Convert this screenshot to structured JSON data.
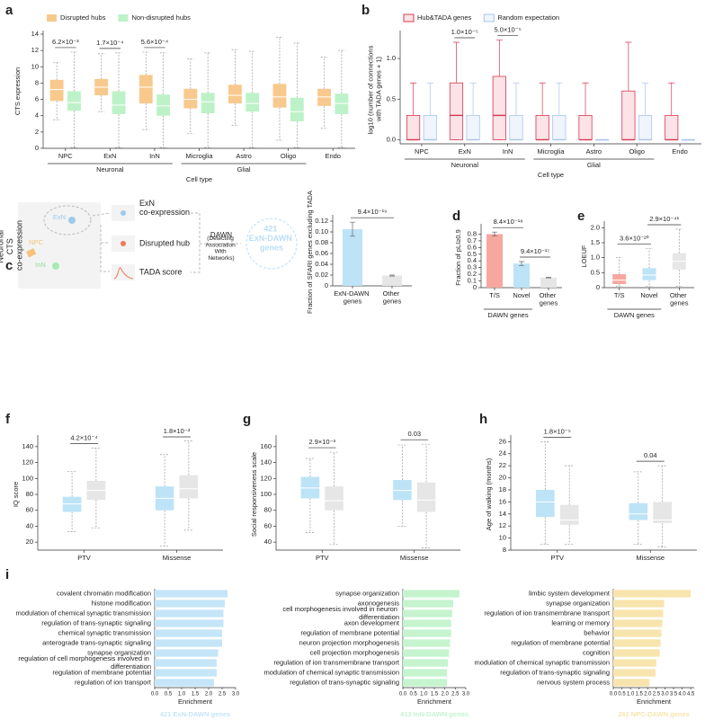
{
  "panels": [
    "a",
    "b",
    "c",
    "d",
    "e",
    "f",
    "g",
    "h",
    "i"
  ],
  "diagram": {
    "title": "Neuronal CTS co-expression",
    "cells": [
      "ExN",
      "InN",
      "NPC"
    ],
    "inputs": [
      "ExN co-expression",
      "Disrupted hub",
      "TADA score"
    ],
    "method": "DAWN",
    "method_note": "(Detecting Association With Networks)",
    "output": "421 ExN-DAWN genes"
  },
  "chart_data": [
    {
      "type": "box",
      "ylabel": "CTS expression",
      "xlabel": "Cell type",
      "categories": [
        "NPC",
        "ExN",
        "InN",
        "Microglia",
        "Astro",
        "Oligo",
        "Endo"
      ],
      "groups": [
        "Neuronal",
        "Neuronal",
        "Neuronal",
        "Glial",
        "Glial",
        "Glial",
        null
      ],
      "ylim": [
        0,
        14
      ],
      "yticks": [
        0,
        2,
        4,
        6,
        8,
        10,
        12,
        14
      ],
      "legend": "top-left",
      "annotations": [
        "6.2×10⁻³",
        "1.7×10⁻⁴",
        "5.6×10⁻⁴",
        null,
        null,
        null,
        null
      ],
      "series": [
        {
          "name": "Disrupted hubs",
          "color": "#f8c98d",
          "values": [
            [
              3.5,
              5.8,
              7.2,
              8.4,
              10.5
            ],
            [
              4.5,
              6.5,
              7.5,
              8.5,
              11.6
            ],
            [
              2.3,
              5.5,
              7.5,
              9.0,
              11.8
            ],
            [
              1.8,
              4.9,
              6.0,
              7.3,
              11.0
            ],
            [
              2.8,
              5.5,
              6.5,
              7.8,
              12.1
            ],
            [
              1.0,
              5.0,
              6.3,
              7.9,
              13.6
            ],
            [
              2.5,
              5.2,
              6.3,
              7.3,
              11.2
            ]
          ]
        },
        {
          "name": "Non-disrupted hubs",
          "color": "#bdf2c8",
          "values": [
            [
              0.1,
              4.6,
              5.6,
              7.0,
              11.8
            ],
            [
              0.1,
              4.2,
              5.3,
              7.0,
              11.7
            ],
            [
              0.1,
              4.0,
              5.2,
              6.6,
              11.7
            ],
            [
              0.1,
              4.3,
              5.7,
              6.8,
              11.7
            ],
            [
              0.1,
              4.5,
              5.5,
              6.8,
              11.9
            ],
            [
              0.1,
              3.3,
              4.5,
              6.2,
              12.9
            ],
            [
              0.1,
              4.2,
              5.5,
              6.7,
              12.0
            ]
          ]
        }
      ]
    },
    {
      "type": "box",
      "ylabel": "log10 (number of connections with TADA genes + 1)",
      "xlabel": "Cell type",
      "categories": [
        "NPC",
        "ExN",
        "InN",
        "Microglia",
        "Astro",
        "Oligo",
        "Endo"
      ],
      "groups": [
        "Neuronal",
        "Neuronal",
        "Neuronal",
        "Glial",
        "Glial",
        "Glial",
        null
      ],
      "ylim": [
        -0.05,
        1.3
      ],
      "yticks": [
        {
          "value": 0,
          "label": "0.0"
        },
        0.5,
        {
          "value": 1,
          "label": "1.0"
        }
      ],
      "legend": "top-left",
      "annotations": [
        null,
        "1.0×10⁻⁵",
        "5.0×10⁻⁵",
        null,
        null,
        null,
        null
      ],
      "series": [
        {
          "name": "Hub&TADA genes",
          "color": "#d9384f",
          "fill": "#fbe3e7",
          "values": [
            [
              0,
              0,
              0,
              0.3,
              0.7
            ],
            [
              0,
              0,
              0.3,
              0.7,
              1.2
            ],
            [
              0,
              0,
              0.3,
              0.78,
              1.23
            ],
            [
              0,
              0,
              0,
              0.3,
              0.7
            ],
            [
              0,
              0,
              0,
              0.3,
              0.7
            ],
            [
              0,
              0,
              0,
              0.6,
              1.2
            ],
            [
              0,
              0,
              0,
              0.3,
              0.7
            ]
          ]
        },
        {
          "name": "Random expectation",
          "color": "#a9c4ec",
          "fill": "#f0f4fc",
          "values": [
            [
              0,
              0,
              0,
              0.3,
              0.7
            ],
            [
              0,
              0,
              0,
              0.3,
              0.7
            ],
            [
              0,
              0,
              0,
              0.3,
              0.7
            ],
            [
              0,
              0,
              0,
              0.3,
              0.7
            ],
            [
              0,
              0,
              0,
              0,
              0
            ],
            [
              0,
              0,
              0,
              0.3,
              0.7
            ],
            [
              0,
              0,
              0,
              0,
              0
            ]
          ]
        }
      ]
    },
    {
      "type": "bar",
      "ylabel": "Fraction of SFARI genes excluding TADA",
      "categories": [
        "ExN-DAWN genes",
        "Other genes"
      ],
      "values": [
        0.105,
        0.019
      ],
      "errors": [
        0.013,
        0.001
      ],
      "colors": [
        "#bde3f6",
        "#e6e6e6"
      ],
      "ylim": [
        0,
        0.125
      ],
      "yticks": [
        0,
        0.02,
        0.04,
        0.06,
        0.08,
        {
          "value": 0.1,
          "label": "0.10"
        },
        0.12
      ],
      "annotations": [
        "9.4×10⁻¹⁹"
      ]
    },
    {
      "type": "bar",
      "ylabel": "Fraction of pLI≥0.9",
      "categories": [
        "T/S",
        "Novel",
        "Other genes"
      ],
      "groups": [
        "DAWN genes",
        "DAWN genes",
        null
      ],
      "values": [
        0.8,
        0.36,
        0.15
      ],
      "errors": [
        0.03,
        0.03,
        0.005
      ],
      "colors": [
        "#f6a8a0",
        "#bde3f6",
        "#e6e6e6"
      ],
      "ylim": [
        0,
        0.9
      ],
      "yticks": [
        0,
        0.1,
        0.2,
        0.3,
        0.4,
        0.5,
        0.6,
        0.7,
        0.8
      ],
      "annotations": [
        "8.4×10⁻¹⁸",
        "9.4×10⁻¹⁷"
      ]
    },
    {
      "type": "box",
      "ylabel": "LOEUF",
      "categories": [
        "T/S",
        "Novel",
        "Other genes"
      ],
      "groups": [
        "DAWN genes",
        "DAWN genes",
        null
      ],
      "values": [
        [
          0.05,
          0.12,
          0.25,
          0.45,
          1.0
        ],
        [
          0.05,
          0.25,
          0.42,
          0.65,
          1.3
        ],
        [
          0.05,
          0.6,
          0.88,
          1.15,
          1.95
        ]
      ],
      "colors": [
        "#f6a8a0",
        "#bde3f6",
        "#e6e6e6"
      ],
      "ylim": [
        0,
        2.1
      ],
      "yticks": [
        0,
        0.5,
        {
          "value": 1,
          "label": "1.0"
        },
        1.5,
        {
          "value": 2,
          "label": "2.0"
        }
      ],
      "annotations": [
        "3.6×10⁻²⁰",
        "2.9×10⁻⁴¹"
      ]
    },
    {
      "type": "box",
      "ylabel": "IQ score",
      "categories": [
        "PTV",
        "Missense"
      ],
      "ylim": [
        10,
        150
      ],
      "yticks": [
        20,
        40,
        60,
        80,
        100,
        120,
        140
      ],
      "annotations": [
        "4.2×10⁻⁴",
        "1.8×10⁻³"
      ],
      "series": [
        {
          "color": "#bde3f6",
          "values": [
            [
              33,
              58,
              68,
              77,
              109
            ],
            [
              15,
              60,
              75,
              90,
              130
            ]
          ]
        },
        {
          "color": "#e6e6e6",
          "values": [
            [
              38,
              73,
              85,
              97,
              138
            ],
            [
              35,
              75,
              87,
              104,
              147
            ]
          ]
        }
      ]
    },
    {
      "type": "box",
      "ylabel": "Social responsiveness scale",
      "categories": [
        "PTV",
        "Missense"
      ],
      "ylim": [
        30,
        170
      ],
      "yticks": [
        40,
        60,
        80,
        100,
        120,
        140,
        160
      ],
      "annotations": [
        "2.9×10⁻³",
        "0.03"
      ],
      "series": [
        {
          "color": "#bde3f6",
          "values": [
            [
              52,
              95,
              108,
              122,
              145
            ],
            [
              60,
              93,
              105,
              118,
              162
            ]
          ]
        },
        {
          "color": "#e6e6e6",
          "values": [
            [
              37,
              80,
              92,
              110,
              153
            ],
            [
              33,
              78,
              93,
              115,
              163
            ]
          ]
        }
      ]
    },
    {
      "type": "box",
      "ylabel": "Age of walking (months)",
      "categories": [
        "PTV",
        "Missense"
      ],
      "ylim": [
        8,
        26.5
      ],
      "yticks": [
        8,
        10,
        12,
        14,
        16,
        18,
        20,
        22,
        24,
        26
      ],
      "annotations": [
        "1.8×10⁻⁵",
        "0.04"
      ],
      "series": [
        {
          "color": "#bde3f6",
          "values": [
            [
              9,
              13.5,
              16,
              18,
              26
            ],
            [
              9,
              13,
              14,
              15.8,
              21
            ]
          ]
        },
        {
          "color": "#e6e6e6",
          "values": [
            [
              9,
              12.2,
              13,
              15.5,
              22
            ],
            [
              8.5,
              12.5,
              13,
              16,
              22
            ]
          ]
        }
      ]
    },
    {
      "type": "hbar",
      "xlabel": "Enrichment",
      "subtitle": "421 ExN-DAWN genes",
      "color": "#c5e5f8",
      "categories": [
        "covalent chromatin modification",
        "histone modification",
        "modulation of chemical synaptic transmission",
        "regulation of trans-synaptic signaling",
        "chemical synaptic transmission",
        "anterograde trans-synaptic signaling",
        "synapse organization",
        "regulation of cell morphogenesis involved in differentiation",
        "regulation of membrane potential",
        "regulation of ion transport"
      ],
      "values": [
        2.7,
        2.6,
        2.55,
        2.55,
        2.5,
        2.5,
        2.35,
        2.3,
        2.3,
        2.2
      ],
      "xlim": [
        0,
        3
      ],
      "xticks": [
        {
          "value": 0,
          "label": "0.0"
        },
        0.5,
        {
          "value": 1,
          "label": "1.0"
        },
        1.5,
        {
          "value": 2,
          "label": "2.0"
        },
        2.5,
        {
          "value": 3,
          "label": "3.0"
        }
      ]
    },
    {
      "type": "hbar",
      "xlabel": "Enrichment",
      "subtitle": "413 InN-DAWN genes",
      "color": "#c5f4cf",
      "categories": [
        "synapse organization",
        "axonogenesis",
        "cell morphogenesis involved in neuron differentiation",
        "axon development",
        "regulation of membrane potential",
        "neuron projection morphogenesis",
        "cell projection morphogenesis",
        "regulation of ion transmembrane transport",
        "modulation of chemical synaptic transmission",
        "regulation of trans-synaptic signaling"
      ],
      "values": [
        2.7,
        2.4,
        2.35,
        2.3,
        2.3,
        2.25,
        2.2,
        2.15,
        2.1,
        2.1
      ],
      "xlim": [
        0,
        3
      ],
      "xticks": [
        {
          "value": 0,
          "label": "0.0"
        },
        0.5,
        {
          "value": 1,
          "label": "1.0"
        },
        1.5,
        {
          "value": 2,
          "label": "2.0"
        },
        2.5,
        {
          "value": 3,
          "label": "3.0"
        }
      ]
    },
    {
      "type": "hbar",
      "xlabel": "Enrichment",
      "subtitle": "261 NPC-DAWN genes",
      "color": "#f8e5ae",
      "categories": [
        "limbic system development",
        "synapse organization",
        "regulation of ion transmembrane transport",
        "learning or memory",
        "behavior",
        "regulation of membrane potential",
        "cognition",
        "modulation of chemical synaptic transmission",
        "regulation of trans-synaptic signaling",
        "nervous system process"
      ],
      "values": [
        4.5,
        2.95,
        2.9,
        2.85,
        2.8,
        2.75,
        2.7,
        2.5,
        2.45,
        2.1
      ],
      "xlim": [
        0,
        4.7
      ],
      "xticks": [
        {
          "value": 0,
          "label": "0.0"
        },
        0.5,
        {
          "value": 1,
          "label": "1.0"
        },
        1.5,
        {
          "value": 2,
          "label": "2.0"
        },
        2.5,
        {
          "value": 3,
          "label": "3.0"
        },
        3.5,
        {
          "value": 4,
          "label": "4.0"
        },
        4.5
      ]
    }
  ]
}
